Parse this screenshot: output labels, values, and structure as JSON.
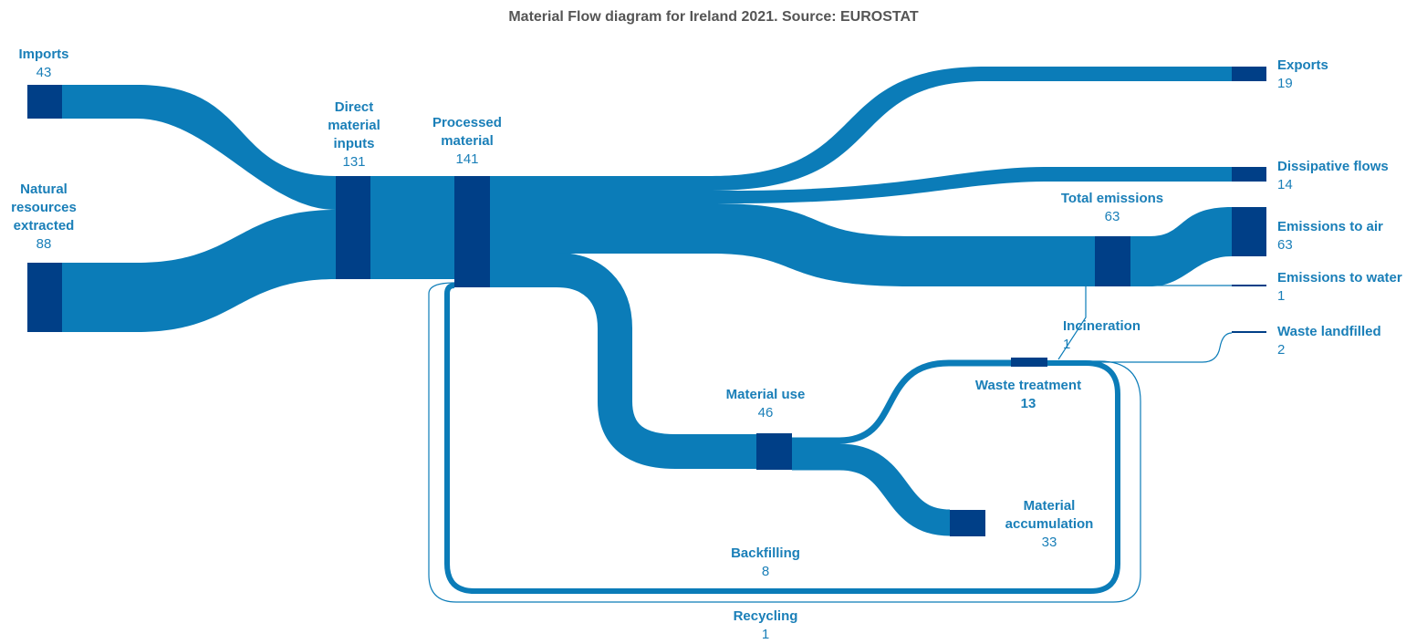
{
  "title": "Material Flow diagram for Ireland 2021. Source: EUROSTAT",
  "nodes": [
    {
      "label": "Imports",
      "value": 43
    },
    {
      "label": "Natural resources extracted",
      "value": 88
    },
    {
      "label": "Direct material inputs",
      "value": 131
    },
    {
      "label": "Processed material",
      "value": 141
    },
    {
      "label": "Exports",
      "value": 19
    },
    {
      "label": "Dissipative flows",
      "value": 14
    },
    {
      "label": "Total emissions",
      "value": 63
    },
    {
      "label": "Emissions to air",
      "value": 63
    },
    {
      "label": "Emissions to water",
      "value": 1
    },
    {
      "label": "Incineration",
      "value": 1
    },
    {
      "label": "Waste landfilled",
      "value": 2
    },
    {
      "label": "Waste treatment",
      "value": 13
    },
    {
      "label": "Material use",
      "value": 46
    },
    {
      "label": "Material accumulation",
      "value": 33
    },
    {
      "label": "Backfilling",
      "value": 8
    },
    {
      "label": "Recycling",
      "value": 1
    }
  ]
}
